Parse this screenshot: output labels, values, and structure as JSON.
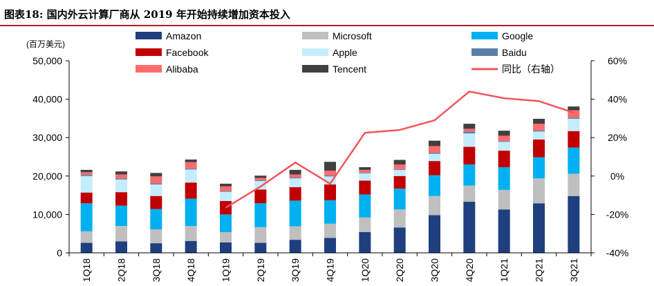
{
  "figure": {
    "title": "图表18:   国内外云计算厂商从 2019 年开始持续增加资本投入",
    "unit_label": "(百万美元)"
  },
  "colors": {
    "title_rule": "#b01e23",
    "axis": "#000000"
  },
  "chart_data": {
    "type": "bar",
    "stacked": true,
    "categories": [
      "1Q18",
      "2Q18",
      "3Q18",
      "4Q18",
      "1Q19",
      "2Q19",
      "3Q19",
      "4Q19",
      "1Q20",
      "2Q20",
      "3Q20",
      "4Q20",
      "1Q21",
      "2Q21",
      "3Q21"
    ],
    "y_left": {
      "min": 0,
      "max": 50000,
      "ticks": [
        0,
        10000,
        20000,
        30000,
        40000,
        50000
      ],
      "tick_labels": [
        "0",
        "10,000",
        "20,000",
        "30,000",
        "40,000",
        "50,000"
      ]
    },
    "y_right": {
      "min": -40,
      "max": 60,
      "ticks": [
        -40,
        -20,
        0,
        20,
        40,
        60
      ],
      "tick_labels": [
        "-40%",
        "-20%",
        "0%",
        "20%",
        "40%",
        "60%"
      ]
    },
    "grid": false,
    "legend_position": "top",
    "series": [
      {
        "name": "Amazon",
        "color": "#1f3f7f",
        "values": [
          2600,
          3000,
          2500,
          3100,
          2700,
          2600,
          3400,
          3900,
          5400,
          6600,
          9800,
          13300,
          11300,
          12900,
          14800
        ]
      },
      {
        "name": "Microsoft",
        "color": "#bfbfbf",
        "values": [
          3000,
          4000,
          3600,
          3900,
          2700,
          4100,
          3500,
          3700,
          3800,
          4700,
          5000,
          4200,
          5100,
          6500,
          5800
        ]
      },
      {
        "name": "Google",
        "color": "#00b0f0",
        "values": [
          7300,
          5300,
          5300,
          7100,
          4600,
          6200,
          6700,
          6100,
          6000,
          5400,
          5400,
          5500,
          5900,
          5500,
          6800
        ]
      },
      {
        "name": "Facebook",
        "color": "#c00000",
        "values": [
          2800,
          3500,
          3400,
          4200,
          3500,
          3600,
          3500,
          4100,
          3600,
          3300,
          3700,
          4600,
          4300,
          4600,
          4300
        ]
      },
      {
        "name": "Apple",
        "color": "#c5ecfb",
        "values": [
          4300,
          3300,
          3000,
          3400,
          2400,
          2200,
          2300,
          2100,
          1900,
          1600,
          1900,
          3500,
          2300,
          2100,
          3200
        ]
      },
      {
        "name": "Baidu",
        "color": "#5b7fa6",
        "values": [
          300,
          300,
          300,
          300,
          200,
          200,
          200,
          300,
          200,
          200,
          300,
          500,
          200,
          300,
          300
        ]
      },
      {
        "name": "Alibaba",
        "color": "#ff6b6b",
        "values": [
          700,
          1000,
          1800,
          1600,
          1200,
          600,
          800,
          1200,
          700,
          1200,
          1700,
          700,
          1400,
          1700,
          1900
        ]
      },
      {
        "name": "Tencent",
        "color": "#404040",
        "values": [
          600,
          800,
          900,
          700,
          700,
          600,
          1200,
          2300,
          700,
          1200,
          1400,
          1300,
          1300,
          1300,
          1000
        ]
      }
    ],
    "line": {
      "name": "同比（右轴）",
      "color": "#f0545b",
      "axis": "right",
      "values": [
        null,
        null,
        null,
        null,
        -16.5,
        -5.5,
        7,
        -4,
        22.5,
        24,
        29,
        44,
        40.5,
        39,
        33
      ]
    }
  }
}
